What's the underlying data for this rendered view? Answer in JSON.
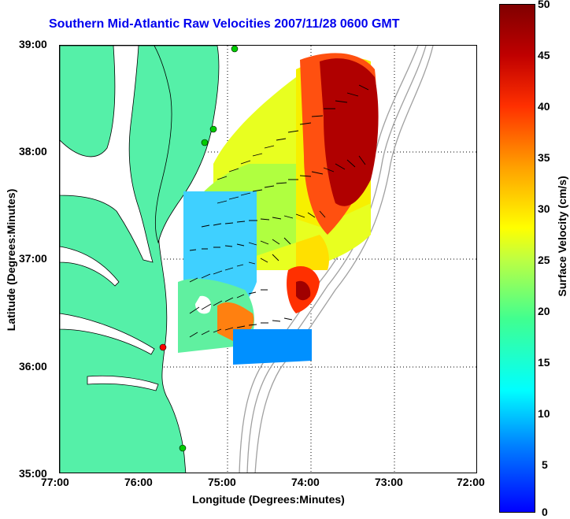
{
  "title": "Southern Mid-Atlantic Raw Velocities 2007/11/28 0600 GMT",
  "xlabel": "Longitude (Degrees:Minutes)",
  "ylabel": "Latitude (Degrees:Minutes)",
  "x_ticks": [
    "77:00",
    "76:00",
    "75:00",
    "74:00",
    "73:00",
    "72:00"
  ],
  "y_ticks": [
    "39:00",
    "38:00",
    "37:00",
    "36:00",
    "35:00"
  ],
  "colorbar": {
    "label": "Surface Velocity (cm/s)",
    "ticks": [
      "50",
      "45",
      "40",
      "35",
      "30",
      "25",
      "20",
      "15",
      "10",
      "5",
      "0"
    ]
  },
  "colors": {
    "land": "#55f0a8",
    "coast_line": "#000000",
    "bathymetry": "#999999",
    "title": "#0000ee",
    "station_marker": "#00cc00",
    "highlight_marker": "#ff0000"
  }
}
